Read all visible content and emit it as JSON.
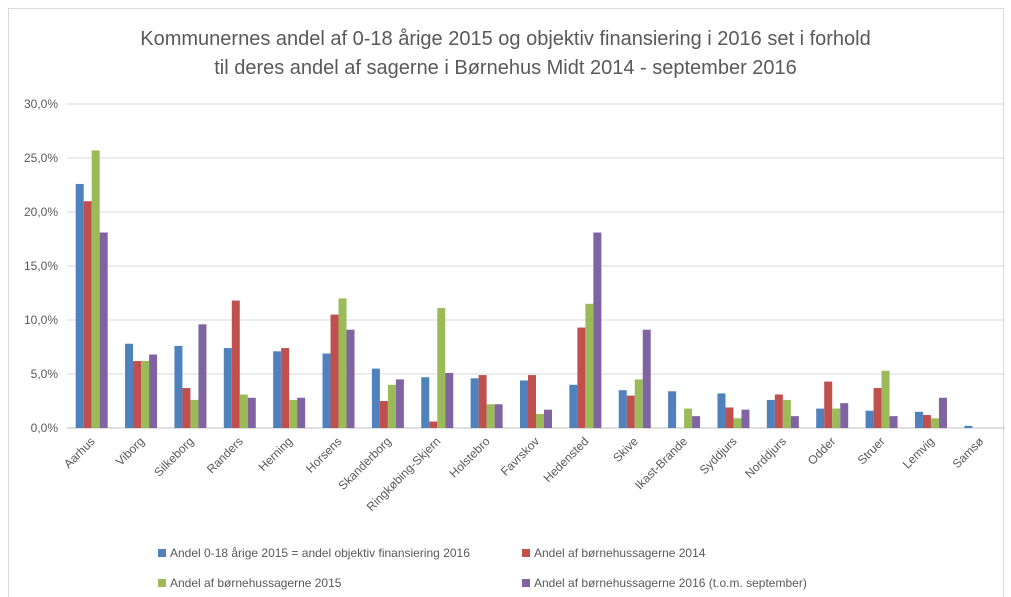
{
  "chart_data": {
    "type": "bar",
    "title_line1": "Kommunernes andel af 0-18 årige 2015 og objektiv finansiering i 2016 set i forhold",
    "title_line2": "til deres andel af sagerne i Børnehus Midt 2014 - september 2016",
    "categories": [
      "Aarhus",
      "Viborg",
      "Silkeborg",
      "Randers",
      "Herning",
      "Horsens",
      "Skanderborg",
      "Ringkøbing-Skjern",
      "Holstebro",
      "Favrskov",
      "Hedensted",
      "Skive",
      "Ikast-Brande",
      "Syddjurs",
      "Norddjurs",
      "Odder",
      "Struer",
      "Lemvig",
      "Samsø"
    ],
    "yticks": [
      "0,0%",
      "5,0%",
      "10,0%",
      "15,0%",
      "20,0%",
      "25,0%",
      "30,0%"
    ],
    "ylim": [
      0,
      30
    ],
    "grid": true,
    "legend_position": "bottom",
    "series": [
      {
        "name": "Andel 0-18 årige 2015 = andel objektiv finansiering 2016",
        "color": "#4f81bd",
        "values": [
          22.6,
          7.8,
          7.6,
          7.4,
          7.1,
          6.9,
          5.5,
          4.7,
          4.6,
          4.4,
          4.0,
          3.5,
          3.4,
          3.2,
          2.6,
          1.8,
          1.6,
          1.5,
          0.2
        ]
      },
      {
        "name": "Andel af børnehussagerne 2014",
        "color": "#c0504d",
        "values": [
          21.0,
          6.2,
          3.7,
          11.8,
          7.4,
          10.5,
          2.5,
          0.6,
          4.9,
          4.9,
          9.3,
          3.0,
          0.0,
          1.9,
          3.1,
          4.3,
          3.7,
          1.2,
          0.0
        ]
      },
      {
        "name": "Andel af børnehussagerne 2015",
        "color": "#9bbb59",
        "values": [
          25.7,
          6.2,
          2.6,
          3.1,
          2.6,
          12.0,
          4.0,
          11.1,
          2.2,
          1.3,
          11.5,
          4.5,
          1.8,
          0.9,
          2.6,
          1.8,
          5.3,
          0.9,
          0.0
        ]
      },
      {
        "name": "Andel af børnehussagerne 2016 (t.o.m. september)",
        "color": "#8064a2",
        "values": [
          18.1,
          6.8,
          9.6,
          2.8,
          2.8,
          9.1,
          4.5,
          5.1,
          2.2,
          1.7,
          18.1,
          9.1,
          1.1,
          1.7,
          1.1,
          2.3,
          1.1,
          2.8,
          0.0
        ]
      }
    ]
  }
}
